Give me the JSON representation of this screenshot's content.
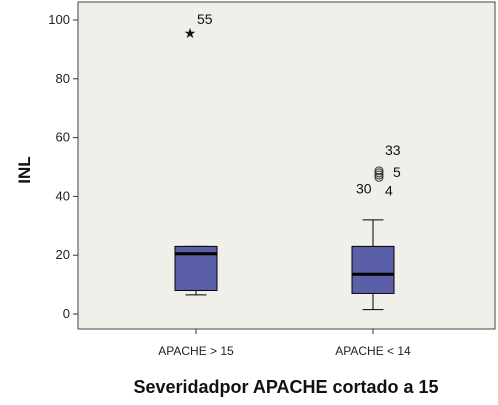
{
  "chart_data": {
    "type": "boxplot",
    "title": "",
    "xlabel": "Severidadpor APACHE cortado a 15",
    "ylabel": "INL",
    "ylim": [
      0,
      100
    ],
    "yticks": [
      "0",
      "20",
      "40",
      "60",
      "80",
      "100"
    ],
    "grid": false,
    "colors": {
      "plot_bg": "#f0efe9",
      "box_fill": "#5b5fa8",
      "box_stroke": "#000000"
    },
    "categories": [
      "APACHE > 15",
      "APACHE < 14"
    ],
    "boxes": [
      {
        "category": "APACHE > 15",
        "whisker_low": 6.5,
        "q1": 8,
        "median": 20.5,
        "q3": 23,
        "whisker_high": 23,
        "outliers": [
          {
            "value": 96,
            "label": "55",
            "marker": "star"
          }
        ]
      },
      {
        "category": "APACHE < 14",
        "whisker_low": 1.5,
        "q1": 7,
        "median": 13.5,
        "q3": 23,
        "whisker_high": 32,
        "outliers": [
          {
            "value": 46.5,
            "label": "30",
            "marker": "circle"
          },
          {
            "value": 47.3,
            "label": "4",
            "marker": "circle"
          },
          {
            "value": 48,
            "label": "5",
            "marker": "circle"
          },
          {
            "value": 48.7,
            "label": "33",
            "marker": "circle"
          }
        ]
      }
    ]
  }
}
